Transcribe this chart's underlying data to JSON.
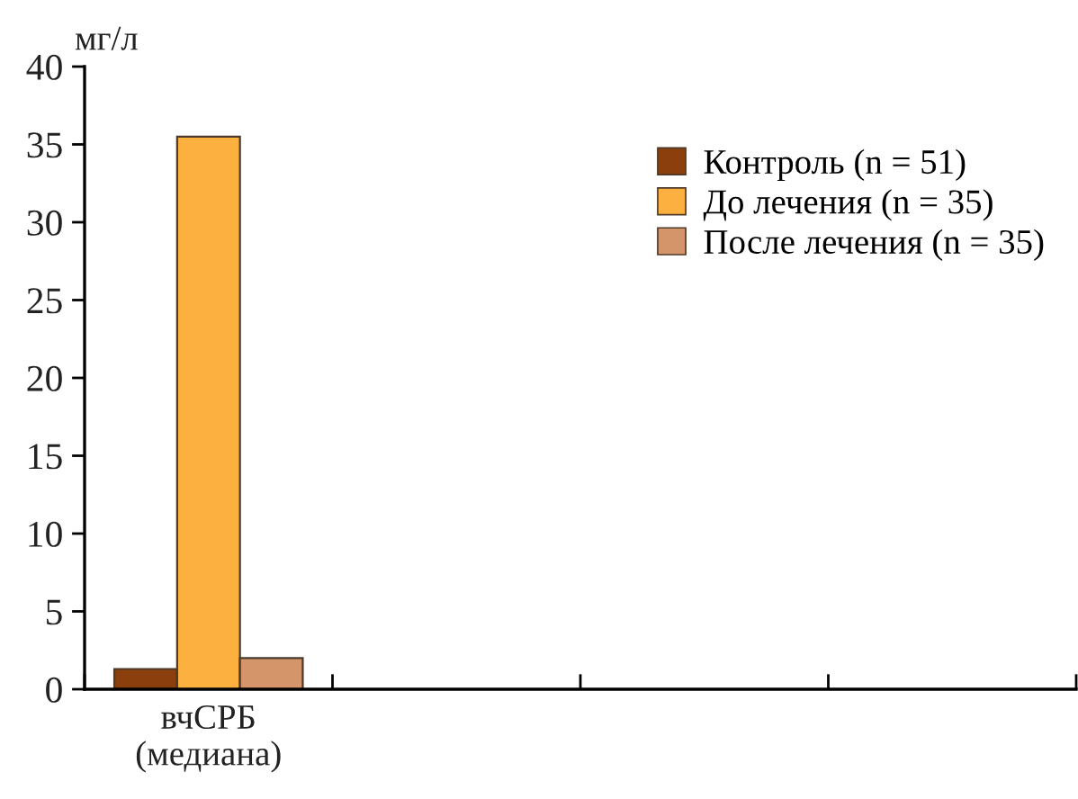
{
  "chart_data": {
    "type": "bar",
    "ylabel": "мг/л",
    "categories": [
      "вчСРБ\n(медиана)",
      null,
      null,
      null
    ],
    "series": [
      {
        "name": "Контроль (n = 51)",
        "color": "#8b3f0c",
        "values": [
          1.3,
          null,
          null,
          null
        ]
      },
      {
        "name": "До лечения (n = 35)",
        "color": "#fbb040",
        "values": [
          35.5,
          null,
          null,
          null
        ]
      },
      {
        "name": "После лечения (n = 35)",
        "color": "#d4956a",
        "values": [
          2.0,
          null,
          null,
          null
        ]
      }
    ],
    "ylim": [
      0,
      40
    ],
    "yticks": [
      0,
      5,
      10,
      15,
      20,
      25,
      30,
      35,
      40
    ],
    "grid": false,
    "legend": "top right"
  }
}
